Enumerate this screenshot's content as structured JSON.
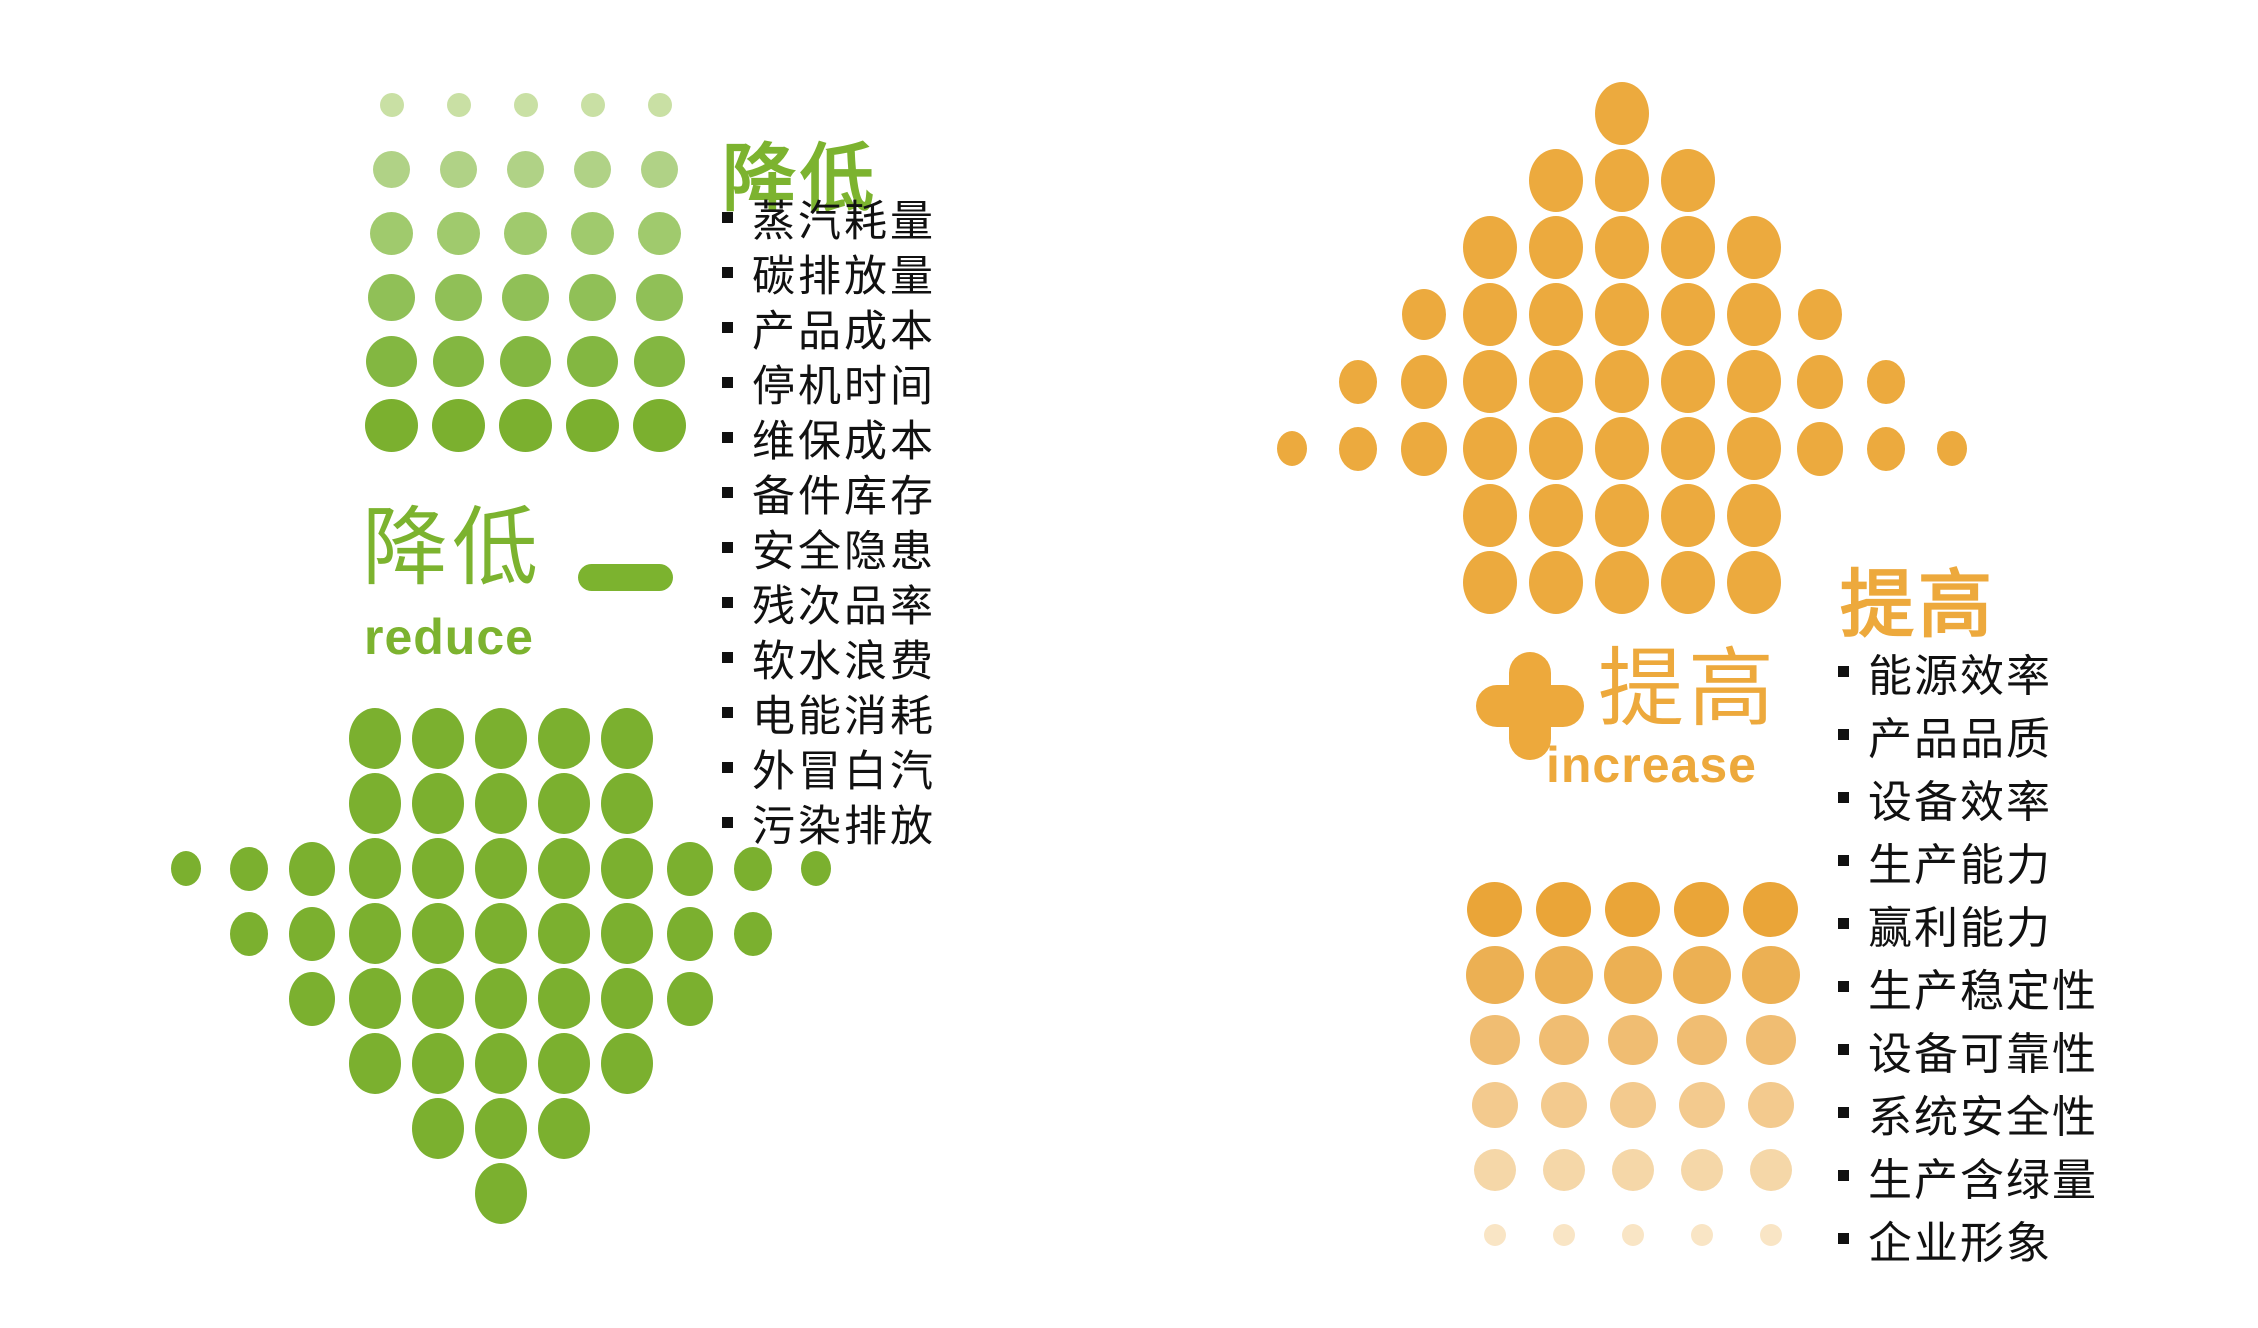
{
  "reduce_section": {
    "heading": "降低",
    "list_items": [
      "蒸汽耗量",
      "碳排放量",
      "产品成本",
      "停机时间",
      "维保成本",
      "备件库存",
      "安全隐患",
      "残次品率",
      "软水浪费",
      "电能消耗",
      "外冒白汽",
      "污染排放"
    ],
    "label_cn": "降低",
    "label_en": "reduce",
    "icon": "minus-dash-icon",
    "accent_color": "#7cb32f",
    "arrow_color": "#7bb02f",
    "arrow_direction": "down",
    "arrow_dot_rows": [
      [
        52,
        52,
        52,
        52,
        52
      ],
      [
        52,
        52,
        52,
        52,
        52
      ],
      [
        30,
        38,
        46,
        52,
        52,
        52,
        52,
        52,
        46,
        38,
        30
      ],
      [
        38,
        46,
        52,
        52,
        52,
        52,
        52,
        46,
        38
      ],
      [
        46,
        52,
        52,
        52,
        52,
        52,
        46
      ],
      [
        52,
        52,
        52,
        52,
        52
      ],
      [
        52,
        52,
        52
      ],
      [
        52
      ]
    ],
    "fade_grid": {
      "columns": 5,
      "fade": "small-light-top-to-large-dark-bottom",
      "row_dot_sizes": [
        24,
        37,
        43,
        47,
        51,
        53
      ],
      "row_dot_colors": [
        "#c9e0a4",
        "#b0d286",
        "#a0ca6d",
        "#90c057",
        "#83b741",
        "#7bb02f"
      ]
    }
  },
  "increase_section": {
    "heading": "提高",
    "list_items": [
      "能源效率",
      "产品品质",
      "设备效率",
      "生产能力",
      "赢利能力",
      "生产稳定性",
      "设备可靠性",
      "系统安全性",
      "生产含绿量",
      "企业形象"
    ],
    "label_cn": "提高",
    "label_en": "increase",
    "icon": "plus-cross-icon",
    "accent_color": "#eda93c",
    "arrow_color": "#ecaa3e",
    "arrow_direction": "up",
    "arrow_dot_rows": [
      [
        54
      ],
      [
        54,
        54,
        54
      ],
      [
        54,
        54,
        54,
        54,
        54
      ],
      [
        44,
        54,
        54,
        54,
        54,
        54,
        44
      ],
      [
        38,
        46,
        54,
        54,
        54,
        54,
        54,
        46,
        38
      ],
      [
        30,
        38,
        46,
        54,
        54,
        54,
        54,
        54,
        46,
        38,
        30
      ],
      [
        54,
        54,
        54,
        54,
        54
      ],
      [
        54,
        54,
        54,
        54,
        54
      ]
    ],
    "fade_grid": {
      "columns": 5,
      "fade": "large-dark-top-to-small-light-bottom",
      "row_dot_sizes": [
        55,
        58,
        50,
        46,
        42,
        22
      ],
      "row_dot_colors": [
        "#eaa538",
        "#ecb053",
        "#f0bd72",
        "#f3ca8e",
        "#f5d7a8",
        "#f9e5c5"
      ]
    }
  },
  "text_color": "#111111"
}
